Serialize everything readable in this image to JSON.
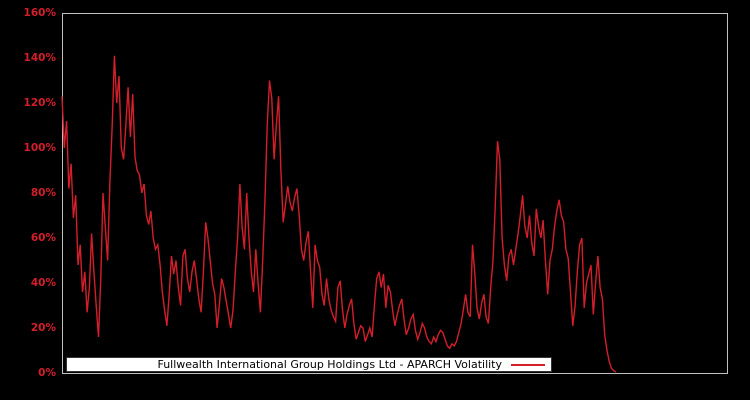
{
  "figure": {
    "background_color": "#000000",
    "plot_border_color": "#c0c0c0",
    "line_color": "#d41f2b",
    "tick_label_color": "#d41f2b",
    "legend": {
      "label": "Fullwealth International Group Holdings Ltd - APARCH Volatility",
      "background": "#ffffff",
      "text_color": "#000000",
      "sample_color": "#d41f2b"
    }
  },
  "chart_data": {
    "type": "line",
    "title": "",
    "xlabel": "",
    "ylabel": "",
    "ylim": [
      0,
      160
    ],
    "yticks": [
      "0%",
      "20%",
      "40%",
      "60%",
      "80%",
      "100%",
      "120%",
      "140%",
      "160%"
    ],
    "xticks": [],
    "grid": false,
    "legend_position": "bottom-center",
    "y_unit": "percent",
    "series_extent_fraction_of_x_axis": 0.832,
    "series": [
      {
        "name": "Fullwealth International Group Holdings Ltd - APARCH Volatility",
        "values": [
          123,
          100,
          112,
          82,
          93,
          69,
          79,
          48,
          57,
          36,
          45,
          27,
          38,
          62,
          45,
          30,
          16,
          42,
          80,
          65,
          50,
          85,
          110,
          141,
          120,
          132,
          100,
          95,
          110,
          127,
          105,
          124,
          96,
          90,
          88,
          80,
          84,
          70,
          66,
          72,
          60,
          55,
          57,
          48,
          36,
          28,
          21,
          35,
          52,
          44,
          50,
          38,
          30,
          52,
          55,
          42,
          36,
          45,
          50,
          42,
          33,
          27,
          45,
          67,
          60,
          50,
          40,
          35,
          20,
          30,
          42,
          38,
          32,
          26,
          20,
          28,
          45,
          60,
          84,
          65,
          55,
          80,
          60,
          45,
          36,
          55,
          40,
          27,
          50,
          76,
          110,
          130,
          122,
          95,
          110,
          123,
          90,
          67,
          75,
          83,
          76,
          72,
          78,
          82,
          70,
          55,
          50,
          58,
          63,
          45,
          29,
          57,
          50,
          47,
          35,
          30,
          42,
          33,
          28,
          25,
          23,
          38,
          41,
          28,
          20,
          26,
          30,
          33,
          22,
          15,
          18,
          21,
          20,
          14,
          17,
          20,
          16,
          30,
          42,
          45,
          38,
          44,
          29,
          39,
          36,
          28,
          21,
          26,
          30,
          33,
          24,
          17,
          20,
          24,
          26,
          19,
          15,
          18,
          22,
          20,
          16,
          14,
          13,
          16,
          14,
          17,
          19,
          18,
          15,
          12,
          11,
          13,
          12,
          14,
          18,
          22,
          28,
          35,
          27,
          25,
          57,
          45,
          29,
          24,
          31,
          35,
          25,
          22,
          38,
          50,
          75,
          103,
          95,
          60,
          48,
          41,
          52,
          55,
          48,
          55,
          62,
          70,
          79,
          65,
          60,
          70,
          58,
          52,
          73,
          65,
          60,
          68,
          50,
          35,
          50,
          55,
          65,
          72,
          77,
          70,
          67,
          55,
          51,
          36,
          21,
          30,
          45,
          57,
          60,
          29,
          40,
          44,
          48,
          26,
          40,
          52,
          38,
          33,
          17,
          10,
          5,
          2,
          1,
          0.5
        ]
      }
    ]
  }
}
